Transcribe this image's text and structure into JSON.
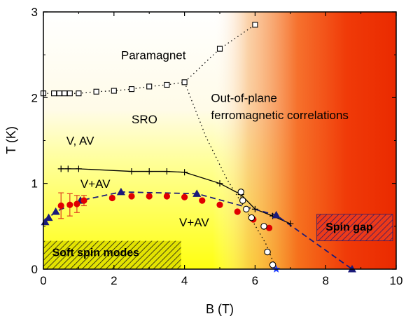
{
  "chart_data": {
    "type": "scatter",
    "title": "",
    "xlabel": "B (T)",
    "ylabel": "T (K)",
    "xlim": [
      0,
      10
    ],
    "ylim": [
      0,
      3
    ],
    "x_ticks": [
      "0",
      "2",
      "4",
      "6",
      "8",
      "10"
    ],
    "y_ticks": [
      "0",
      "1",
      "2",
      "3"
    ],
    "grid": false,
    "background": "gradient: white (top-left) through yellow (bottom-left) to red/orange (right)",
    "series": [
      {
        "marker": "open-square",
        "line": "dotted",
        "color": "#000000",
        "x": [
          0.0,
          0.3,
          0.45,
          0.6,
          0.75,
          1.0,
          1.5,
          2.0,
          2.5,
          3.0,
          3.5,
          4.0,
          5.0,
          6.0
        ],
        "y": [
          2.05,
          2.05,
          2.05,
          2.05,
          2.05,
          2.05,
          2.07,
          2.08,
          2.1,
          2.13,
          2.15,
          2.18,
          2.57,
          2.85
        ]
      },
      {
        "marker": "plus",
        "line": "solid",
        "color": "#000000",
        "x": [
          0.5,
          0.7,
          1.0,
          2.5,
          3.0,
          3.5,
          4.0,
          5.0,
          5.6,
          6.0,
          6.5,
          7.0
        ],
        "y": [
          1.17,
          1.17,
          1.17,
          1.14,
          1.14,
          1.14,
          1.13,
          1.0,
          0.87,
          0.7,
          0.62,
          0.53
        ]
      },
      {
        "marker": "filled-triangle",
        "line": "dashed",
        "color": "#1a1a7a",
        "x": [
          0.05,
          0.15,
          0.35,
          1.05,
          2.2,
          4.35,
          6.6,
          8.75
        ],
        "y": [
          0.55,
          0.6,
          0.67,
          0.8,
          0.9,
          0.88,
          0.63,
          0.0
        ]
      },
      {
        "marker": "filled-circle",
        "line": "none",
        "color": "#e00000",
        "x": [
          0.5,
          0.75,
          0.95,
          1.15,
          1.95,
          2.5,
          3.0,
          3.5,
          4.0,
          4.5,
          5.0,
          5.5,
          5.95,
          6.4
        ],
        "y": [
          0.74,
          0.75,
          0.76,
          0.8,
          0.83,
          0.85,
          0.85,
          0.85,
          0.84,
          0.8,
          0.75,
          0.67,
          0.58,
          0.48
        ],
        "yerr": [
          0.15,
          0.13,
          0.1,
          0.06,
          0,
          0,
          0,
          0,
          0,
          0,
          0,
          0,
          0,
          0
        ]
      },
      {
        "marker": "open-circle",
        "line": "none",
        "color": "#000000",
        "x": [
          5.6,
          5.65,
          5.75,
          5.9,
          6.25,
          6.35,
          6.5
        ],
        "y": [
          0.9,
          0.8,
          0.7,
          0.6,
          0.5,
          0.2,
          0.05
        ]
      },
      {
        "marker": "star",
        "line": "none",
        "color": "#1f3fff",
        "x": [
          6.6
        ],
        "y": [
          0.0
        ]
      },
      {
        "marker": "none",
        "line": "dotted",
        "color": "#000000",
        "x": [
          4.0,
          4.6,
          5.2,
          5.8,
          6.3,
          6.6
        ],
        "y": [
          2.18,
          1.55,
          1.05,
          0.65,
          0.3,
          0.0
        ]
      }
    ],
    "annotations": [
      {
        "text": "Paramagnet",
        "x": 2.2,
        "y": 2.45
      },
      {
        "text": "Out-of-plane",
        "x": 4.75,
        "y": 1.95
      },
      {
        "text": "ferromagnetic correlations",
        "x": 4.75,
        "y": 1.75
      },
      {
        "text": "SRO",
        "x": 2.5,
        "y": 1.7
      },
      {
        "text": "V, AV",
        "x": 0.65,
        "y": 1.45
      },
      {
        "text": "V+AV",
        "x": 1.05,
        "y": 0.95
      },
      {
        "text": "V+AV",
        "x": 3.85,
        "y": 0.5
      },
      {
        "text": "Soft spin modes",
        "x": 0.25,
        "y": 0.15
      },
      {
        "text": "Spin gap",
        "x": 8.0,
        "y": 0.45
      }
    ],
    "hatched_regions": [
      {
        "label": "Soft spin modes",
        "x": [
          0.0,
          3.9
        ],
        "y": [
          0.0,
          0.33
        ]
      },
      {
        "label": "Spin gap",
        "x": [
          7.75,
          9.9
        ],
        "y": [
          0.33,
          0.64
        ]
      }
    ]
  }
}
